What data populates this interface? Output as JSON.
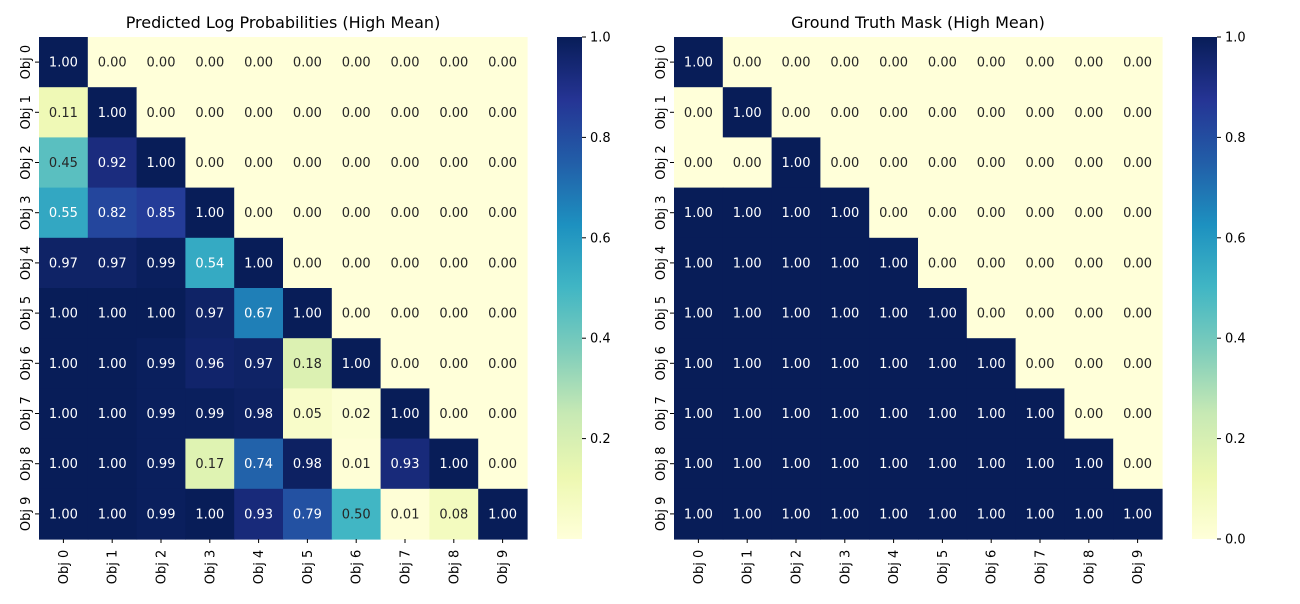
{
  "chart_data": [
    {
      "type": "heatmap",
      "title": "Predicted Log Probabilities (High Mean)",
      "x_categories": [
        "Obj 0",
        "Obj 1",
        "Obj 2",
        "Obj 3",
        "Obj 4",
        "Obj 5",
        "Obj 6",
        "Obj 7",
        "Obj 8",
        "Obj 9"
      ],
      "y_categories": [
        "Obj 0",
        "Obj 1",
        "Obj 2",
        "Obj 3",
        "Obj 4",
        "Obj 5",
        "Obj 6",
        "Obj 7",
        "Obj 8",
        "Obj 9"
      ],
      "values": [
        [
          1.0,
          0.0,
          0.0,
          0.0,
          0.0,
          0.0,
          0.0,
          0.0,
          0.0,
          0.0
        ],
        [
          0.11,
          1.0,
          0.0,
          0.0,
          0.0,
          0.0,
          0.0,
          0.0,
          0.0,
          0.0
        ],
        [
          0.45,
          0.92,
          1.0,
          0.0,
          0.0,
          0.0,
          0.0,
          0.0,
          0.0,
          0.0
        ],
        [
          0.55,
          0.82,
          0.85,
          1.0,
          0.0,
          0.0,
          0.0,
          0.0,
          0.0,
          0.0
        ],
        [
          0.97,
          0.97,
          0.99,
          0.54,
          1.0,
          0.0,
          0.0,
          0.0,
          0.0,
          0.0
        ],
        [
          1.0,
          1.0,
          1.0,
          0.97,
          0.67,
          1.0,
          0.0,
          0.0,
          0.0,
          0.0
        ],
        [
          1.0,
          1.0,
          0.99,
          0.96,
          0.97,
          0.18,
          1.0,
          0.0,
          0.0,
          0.0
        ],
        [
          1.0,
          1.0,
          0.99,
          0.99,
          0.98,
          0.05,
          0.02,
          1.0,
          0.0,
          0.0
        ],
        [
          1.0,
          1.0,
          0.99,
          0.17,
          0.74,
          0.98,
          0.01,
          0.93,
          1.0,
          0.0
        ],
        [
          1.0,
          1.0,
          0.99,
          1.0,
          0.93,
          0.79,
          0.5,
          0.01,
          0.08,
          1.0
        ]
      ],
      "colormap": "YlGnBu",
      "color_range": [
        0,
        1
      ],
      "colorbar_ticks": [
        "0.2",
        "0.4",
        "0.6",
        "0.8",
        "1.0"
      ],
      "colorbar_tick_values": [
        0.2,
        0.4,
        0.6,
        0.8,
        1.0
      ]
    },
    {
      "type": "heatmap",
      "title": "Ground Truth Mask (High Mean)",
      "x_categories": [
        "Obj 0",
        "Obj 1",
        "Obj 2",
        "Obj 3",
        "Obj 4",
        "Obj 5",
        "Obj 6",
        "Obj 7",
        "Obj 8",
        "Obj 9"
      ],
      "y_categories": [
        "Obj 0",
        "Obj 1",
        "Obj 2",
        "Obj 3",
        "Obj 4",
        "Obj 5",
        "Obj 6",
        "Obj 7",
        "Obj 8",
        "Obj 9"
      ],
      "values": [
        [
          1,
          0,
          0,
          0,
          0,
          0,
          0,
          0,
          0,
          0
        ],
        [
          0,
          1,
          0,
          0,
          0,
          0,
          0,
          0,
          0,
          0
        ],
        [
          0,
          0,
          1,
          0,
          0,
          0,
          0,
          0,
          0,
          0
        ],
        [
          1,
          1,
          1,
          1,
          0,
          0,
          0,
          0,
          0,
          0
        ],
        [
          1,
          1,
          1,
          1,
          1,
          0,
          0,
          0,
          0,
          0
        ],
        [
          1,
          1,
          1,
          1,
          1,
          1,
          0,
          0,
          0,
          0
        ],
        [
          1,
          1,
          1,
          1,
          1,
          1,
          1,
          0,
          0,
          0
        ],
        [
          1,
          1,
          1,
          1,
          1,
          1,
          1,
          1,
          0,
          0
        ],
        [
          1,
          1,
          1,
          1,
          1,
          1,
          1,
          1,
          1,
          0
        ],
        [
          1,
          1,
          1,
          1,
          1,
          1,
          1,
          1,
          1,
          1
        ]
      ],
      "colormap": "YlGnBu",
      "color_range": [
        0,
        1
      ],
      "colorbar_ticks": [
        "0.0",
        "0.2",
        "0.4",
        "0.6",
        "0.8",
        "1.0"
      ],
      "colorbar_tick_values": [
        0.0,
        0.2,
        0.4,
        0.6,
        0.8,
        1.0
      ]
    }
  ]
}
